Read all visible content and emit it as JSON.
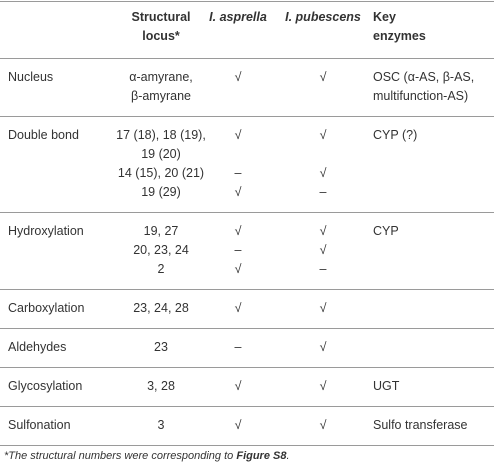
{
  "table": {
    "header": [
      [
        "Structural",
        "locus*"
      ],
      "I. asprella",
      "I. pubescens",
      [
        "Key",
        "enzymes"
      ]
    ],
    "groups": [
      {
        "label": "Nucleus",
        "loci": [
          [
            "α-amyrane,",
            "β-amyrane"
          ]
        ],
        "asprella": [
          "√"
        ],
        "pubescens": [
          "√"
        ],
        "enzymes": [
          "OSC (α-AS, β-AS,",
          "multifunction-AS)"
        ]
      },
      {
        "label": "Double bond",
        "loci": [
          [
            "17 (18), 18 (19),",
            "19 (20)"
          ],
          "14 (15), 20 (21)",
          "19 (29)"
        ],
        "asprella": [
          "√",
          "–",
          "√"
        ],
        "pubescens": [
          "√",
          "√",
          "–"
        ],
        "enzymes": [
          "CYP (?)"
        ]
      },
      {
        "label": "Hydroxylation",
        "loci": [
          "19, 27",
          "20, 23, 24",
          "2"
        ],
        "asprella": [
          "√",
          "–",
          "√"
        ],
        "pubescens": [
          "√",
          "√",
          "–"
        ],
        "enzymes": [
          "CYP"
        ]
      },
      {
        "label": "Carboxylation",
        "loci": [
          "23, 24, 28"
        ],
        "asprella": [
          "√"
        ],
        "pubescens": [
          "√"
        ]
      },
      {
        "label": "Aldehydes",
        "loci": [
          "23"
        ],
        "asprella": [
          "–"
        ],
        "pubescens": [
          "√"
        ]
      },
      {
        "label": "Glycosylation",
        "loci": [
          "3, 28"
        ],
        "asprella": [
          "√"
        ],
        "pubescens": [
          "√"
        ],
        "enzymes": [
          "UGT"
        ]
      },
      {
        "label": "Sulfonation",
        "loci": [
          "3"
        ],
        "asprella": [
          "√"
        ],
        "pubescens": [
          "√"
        ],
        "enzymes": [
          "Sulfo transferase"
        ]
      }
    ],
    "footnote": {
      "text": "*The structural numbers were corresponding to ",
      "ref": "Figure S8",
      "end": "."
    }
  }
}
